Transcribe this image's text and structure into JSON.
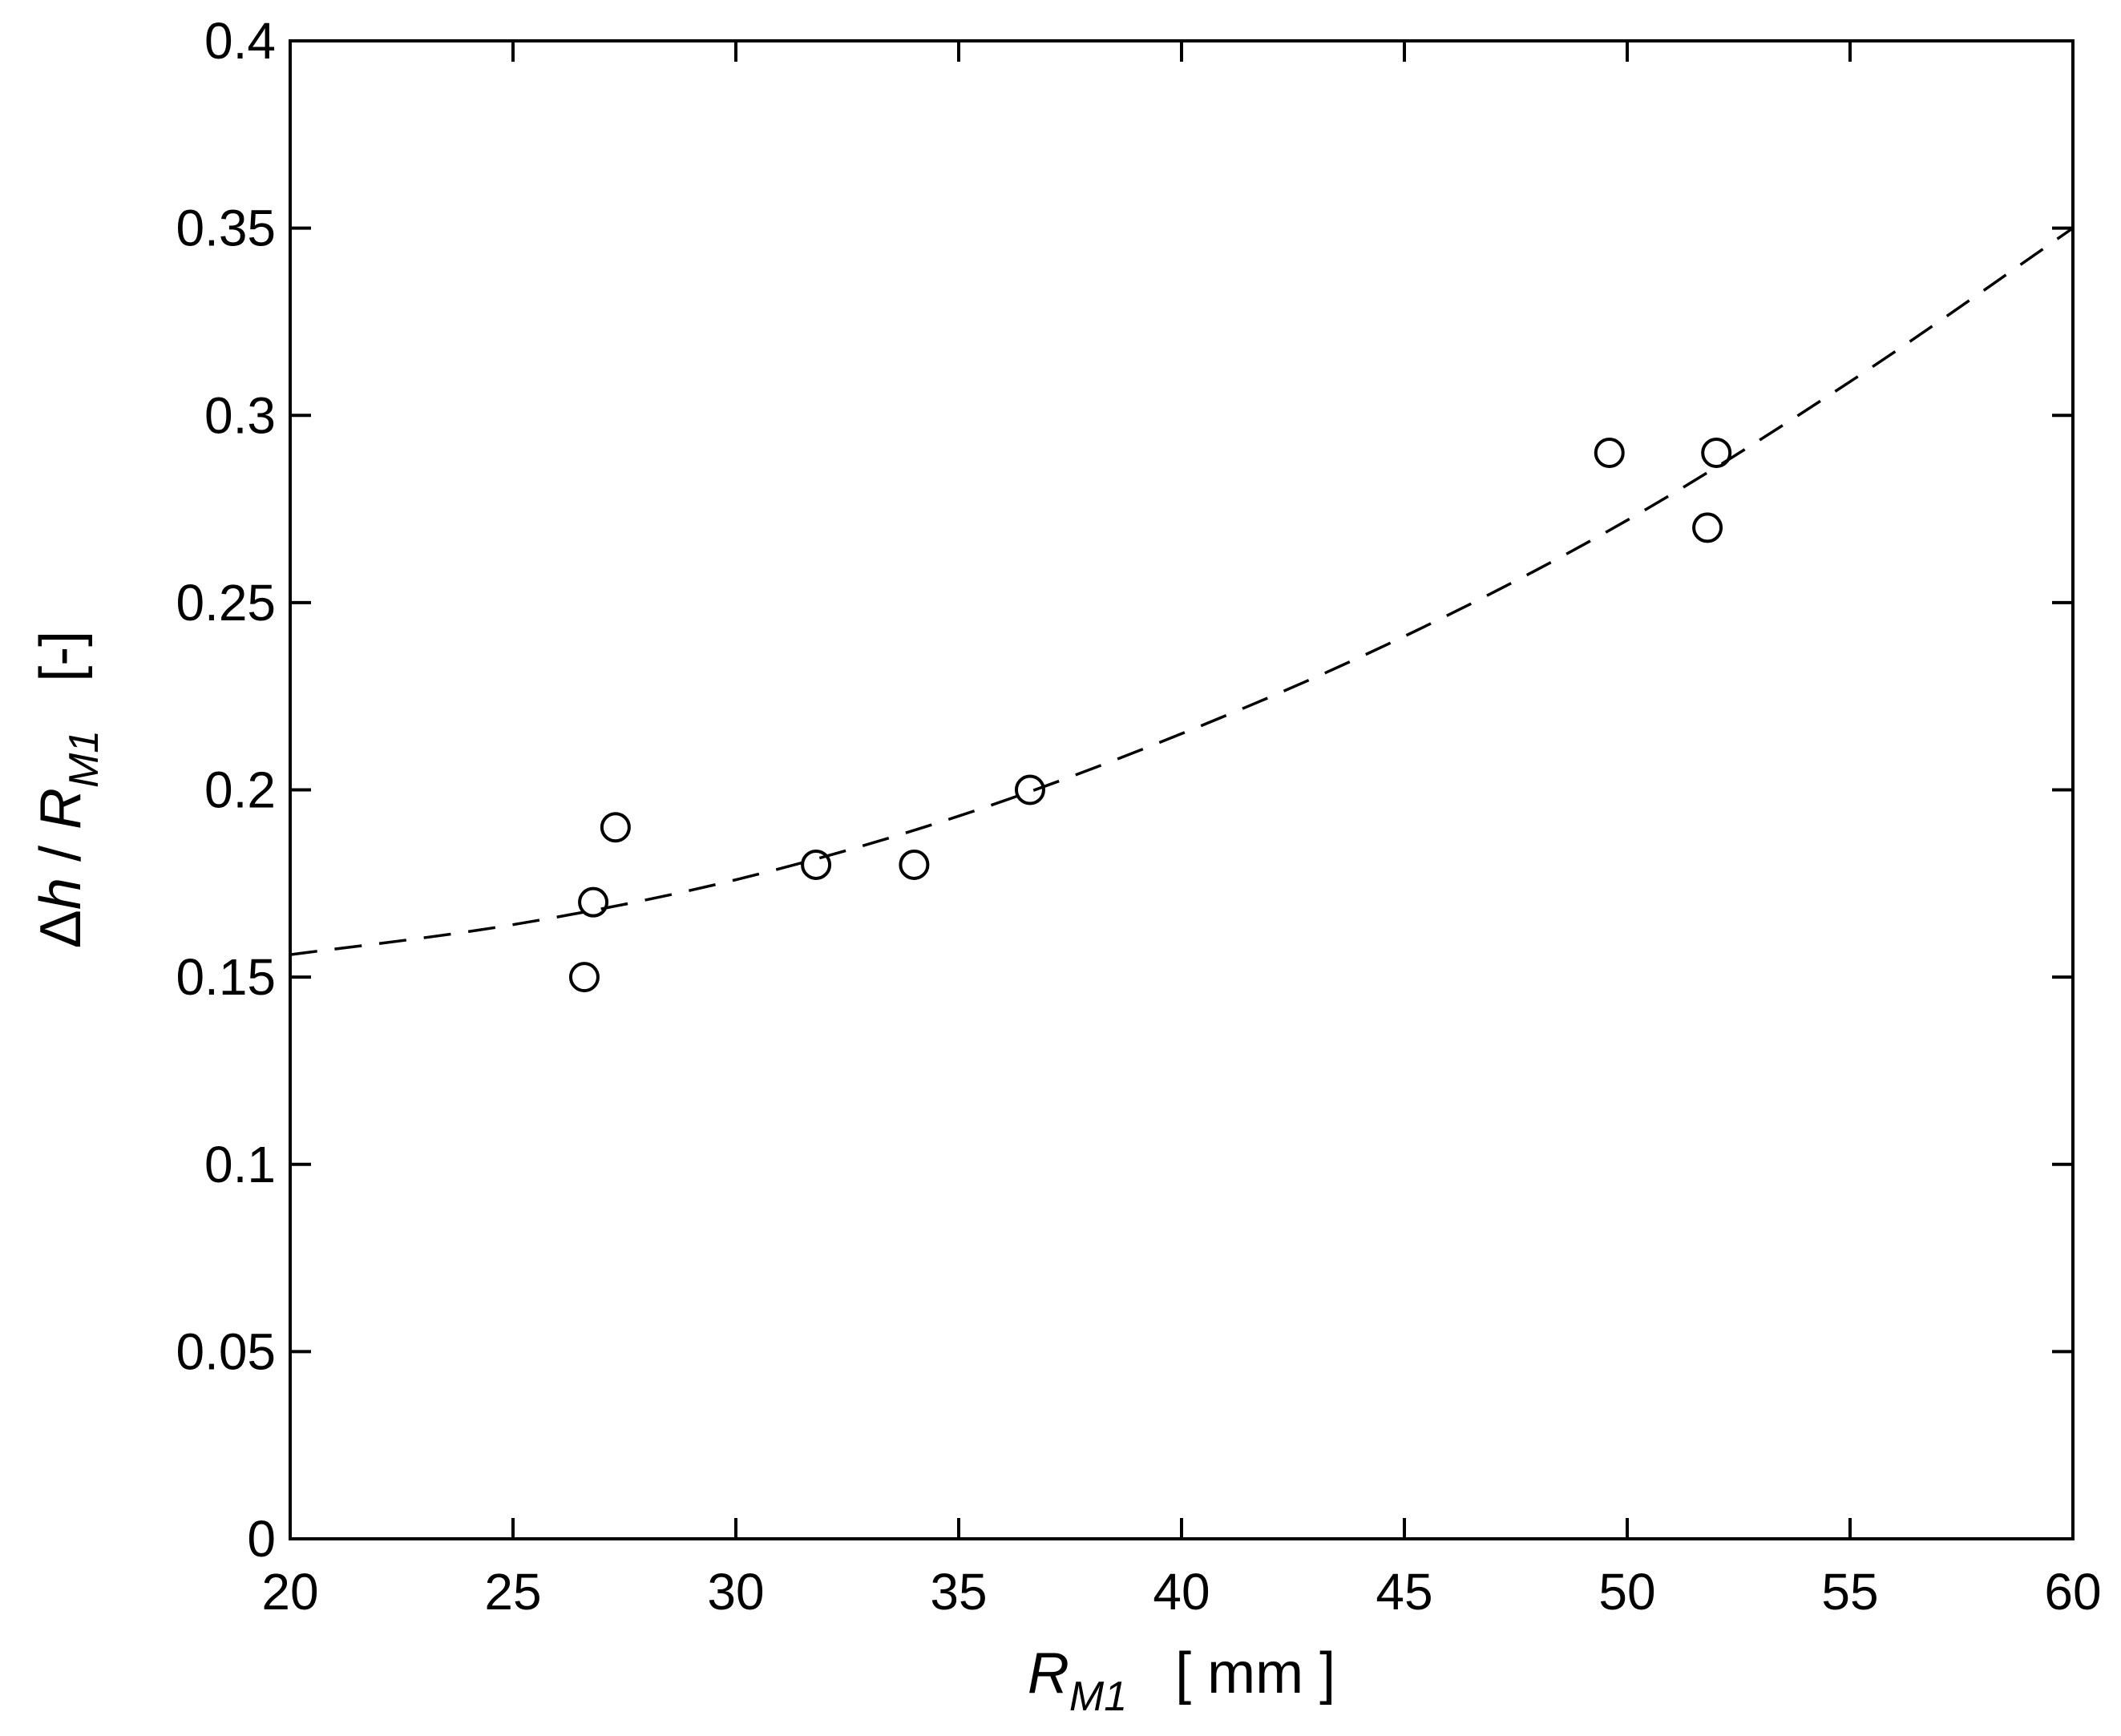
{
  "chart_data": {
    "type": "scatter",
    "title": "",
    "xlabel": {
      "main": "R",
      "sub": "M1",
      "unit": "[ mm ]"
    },
    "ylabel": {
      "delta": "Δ",
      "h": "h",
      "slash": " / ",
      "main": "R",
      "sub": "M1",
      "unit": "[-]"
    },
    "xlim": [
      20,
      60
    ],
    "ylim": [
      0,
      0.4
    ],
    "xticks": [
      20,
      25,
      30,
      35,
      40,
      45,
      50,
      55,
      60
    ],
    "yticks": [
      0,
      0.05,
      0.1,
      0.15,
      0.2,
      0.25,
      0.3,
      0.35,
      0.4
    ],
    "xtick_labels": [
      "20",
      "25",
      "30",
      "35",
      "40",
      "45",
      "50",
      "55",
      "60"
    ],
    "ytick_labels": [
      "0",
      "0.05",
      "0.1",
      "0.15",
      "0.2",
      "0.25",
      "0.3",
      "0.35",
      "0.4"
    ],
    "grid": false,
    "series": [
      {
        "kind": "points",
        "marker": "open-circle",
        "color": "#000000",
        "x": [
          26.6,
          26.8,
          27.3,
          31.8,
          34.0,
          36.6,
          49.6,
          51.8,
          52.0
        ],
        "y": [
          0.15,
          0.17,
          0.19,
          0.18,
          0.18,
          0.2,
          0.29,
          0.27,
          0.29
        ]
      },
      {
        "kind": "fit-curve",
        "style": "dashed",
        "color": "#000000",
        "x": [
          20,
          25,
          30,
          35,
          40,
          45,
          50,
          55,
          60
        ],
        "y": [
          0.156,
          0.164,
          0.176,
          0.193,
          0.215,
          0.241,
          0.272,
          0.309,
          0.35
        ]
      }
    ]
  }
}
